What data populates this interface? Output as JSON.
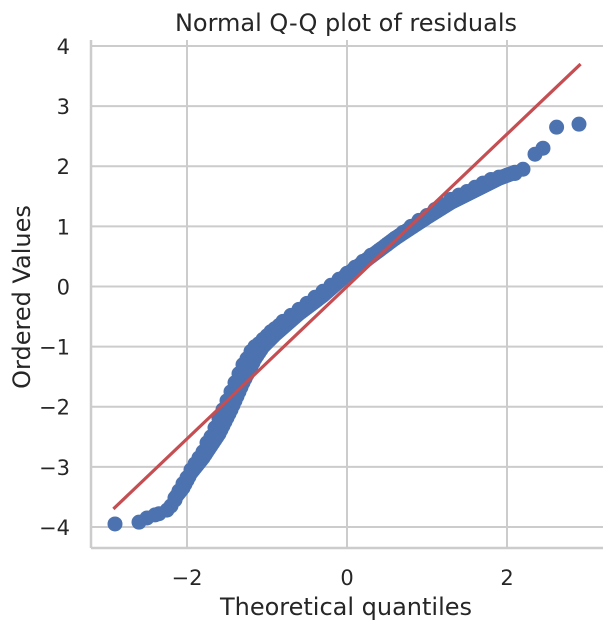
{
  "chart_data": {
    "type": "scatter",
    "title": "Normal Q-Q plot of residuals",
    "xlabel": "Theoretical quantiles",
    "ylabel": "Ordered Values",
    "xlim": [
      -3.2,
      3.2
    ],
    "ylim": [
      -4.35,
      4.1
    ],
    "xticks": [
      -2,
      0,
      2
    ],
    "yticks": [
      -4,
      -3,
      -2,
      -1,
      0,
      1,
      2,
      3,
      4
    ],
    "xtick_labels": [
      "−2",
      "0",
      "2"
    ],
    "ytick_labels": [
      "−4",
      "−3",
      "−2",
      "−1",
      "0",
      "1",
      "2",
      "3",
      "4"
    ],
    "grid": true,
    "marker_color": "#4c72b0",
    "line_color": "#c44e52",
    "reference_line": {
      "x": [
        -2.92,
        2.92
      ],
      "y": [
        -3.7,
        3.7
      ]
    },
    "quantile_curve": {
      "x": [
        -2.9,
        -2.6,
        -2.4,
        -2.2,
        -2.05,
        -1.95,
        -1.8,
        -1.6,
        -1.45,
        -1.3,
        -1.15,
        -1.05,
        -0.9,
        -0.6,
        -0.3,
        0.0,
        0.3,
        0.6,
        1.0,
        1.3,
        1.6,
        1.9,
        2.1
      ],
      "y": [
        -3.95,
        -3.85,
        -3.75,
        -3.6,
        -3.35,
        -3.1,
        -2.85,
        -2.45,
        -2.05,
        -1.6,
        -1.2,
        -1.0,
        -0.8,
        -0.45,
        -0.15,
        0.2,
        0.5,
        0.8,
        1.15,
        1.4,
        1.6,
        1.8,
        1.9
      ]
    },
    "points": {
      "x": [
        -2.9,
        -2.6,
        -2.5,
        -2.4,
        -2.35,
        -2.25,
        -2.2,
        -2.15,
        -2.1,
        -2.05,
        -2.0,
        -1.95,
        -1.9,
        -1.85,
        -1.8,
        -1.75,
        -1.7,
        -1.65,
        -1.6,
        -1.55,
        -1.5,
        -1.45,
        -1.4,
        -1.35,
        -1.3,
        -1.25,
        -1.2,
        -1.15,
        -1.1,
        -1.05,
        -1.0,
        -0.95,
        -0.9,
        -0.85,
        -0.8,
        -0.7,
        -0.6,
        -0.5,
        -0.4,
        -0.3,
        -0.2,
        -0.1,
        0.0,
        0.1,
        0.2,
        0.3,
        0.4,
        0.5,
        0.6,
        0.7,
        0.8,
        0.9,
        1.0,
        1.1,
        1.2,
        1.3,
        1.4,
        1.5,
        1.6,
        1.7,
        1.8,
        1.9,
        2.0,
        2.1,
        2.2,
        2.35,
        2.45,
        2.62,
        2.9
      ],
      "y": [
        -3.95,
        -3.92,
        -3.85,
        -3.8,
        -3.78,
        -3.72,
        -3.65,
        -3.55,
        -3.4,
        -3.28,
        -3.18,
        -3.05,
        -2.95,
        -2.85,
        -2.75,
        -2.6,
        -2.5,
        -2.35,
        -2.2,
        -2.05,
        -1.9,
        -1.75,
        -1.6,
        -1.45,
        -1.3,
        -1.2,
        -1.08,
        -1.0,
        -0.95,
        -0.88,
        -0.82,
        -0.75,
        -0.7,
        -0.65,
        -0.58,
        -0.48,
        -0.38,
        -0.28,
        -0.18,
        -0.08,
        0.02,
        0.12,
        0.22,
        0.32,
        0.42,
        0.52,
        0.6,
        0.7,
        0.8,
        0.9,
        1.0,
        1.1,
        1.18,
        1.28,
        1.36,
        1.45,
        1.52,
        1.58,
        1.65,
        1.72,
        1.78,
        1.82,
        1.85,
        1.88,
        1.95,
        2.2,
        2.3,
        2.65,
        2.7
      ]
    }
  }
}
